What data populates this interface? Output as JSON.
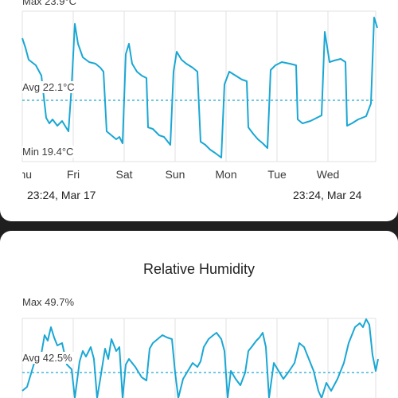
{
  "temperature": {
    "max_label": "Max 23.9°C",
    "avg_label": "Avg 22.1°C",
    "min_label": "Min 19.4°C",
    "days": [
      "Thu",
      "Fri",
      "Sat",
      "Sun",
      "Mon",
      "Tue",
      "Wed"
    ],
    "range_start": "23:24,  Mar 17",
    "range_end": "23:24,  Mar 24",
    "line_color": "#1aa7d4"
  },
  "humidity": {
    "title": "Relative Humidity",
    "max_label": "Max 49.7%",
    "avg_label": "Avg 42.5%",
    "line_color": "#1aa7d4"
  },
  "chart_data": [
    {
      "type": "line",
      "title": "",
      "unit": "°C",
      "x": [
        "Thu",
        "Fri",
        "Sat",
        "Sun",
        "Mon",
        "Tue",
        "Wed"
      ],
      "ylim": [
        19.4,
        23.9
      ],
      "max": 23.9,
      "avg": 22.1,
      "min": 19.4,
      "grid": true
    },
    {
      "type": "line",
      "title": "Relative Humidity",
      "unit": "%",
      "max": 49.7,
      "avg": 42.5,
      "grid": true
    }
  ]
}
